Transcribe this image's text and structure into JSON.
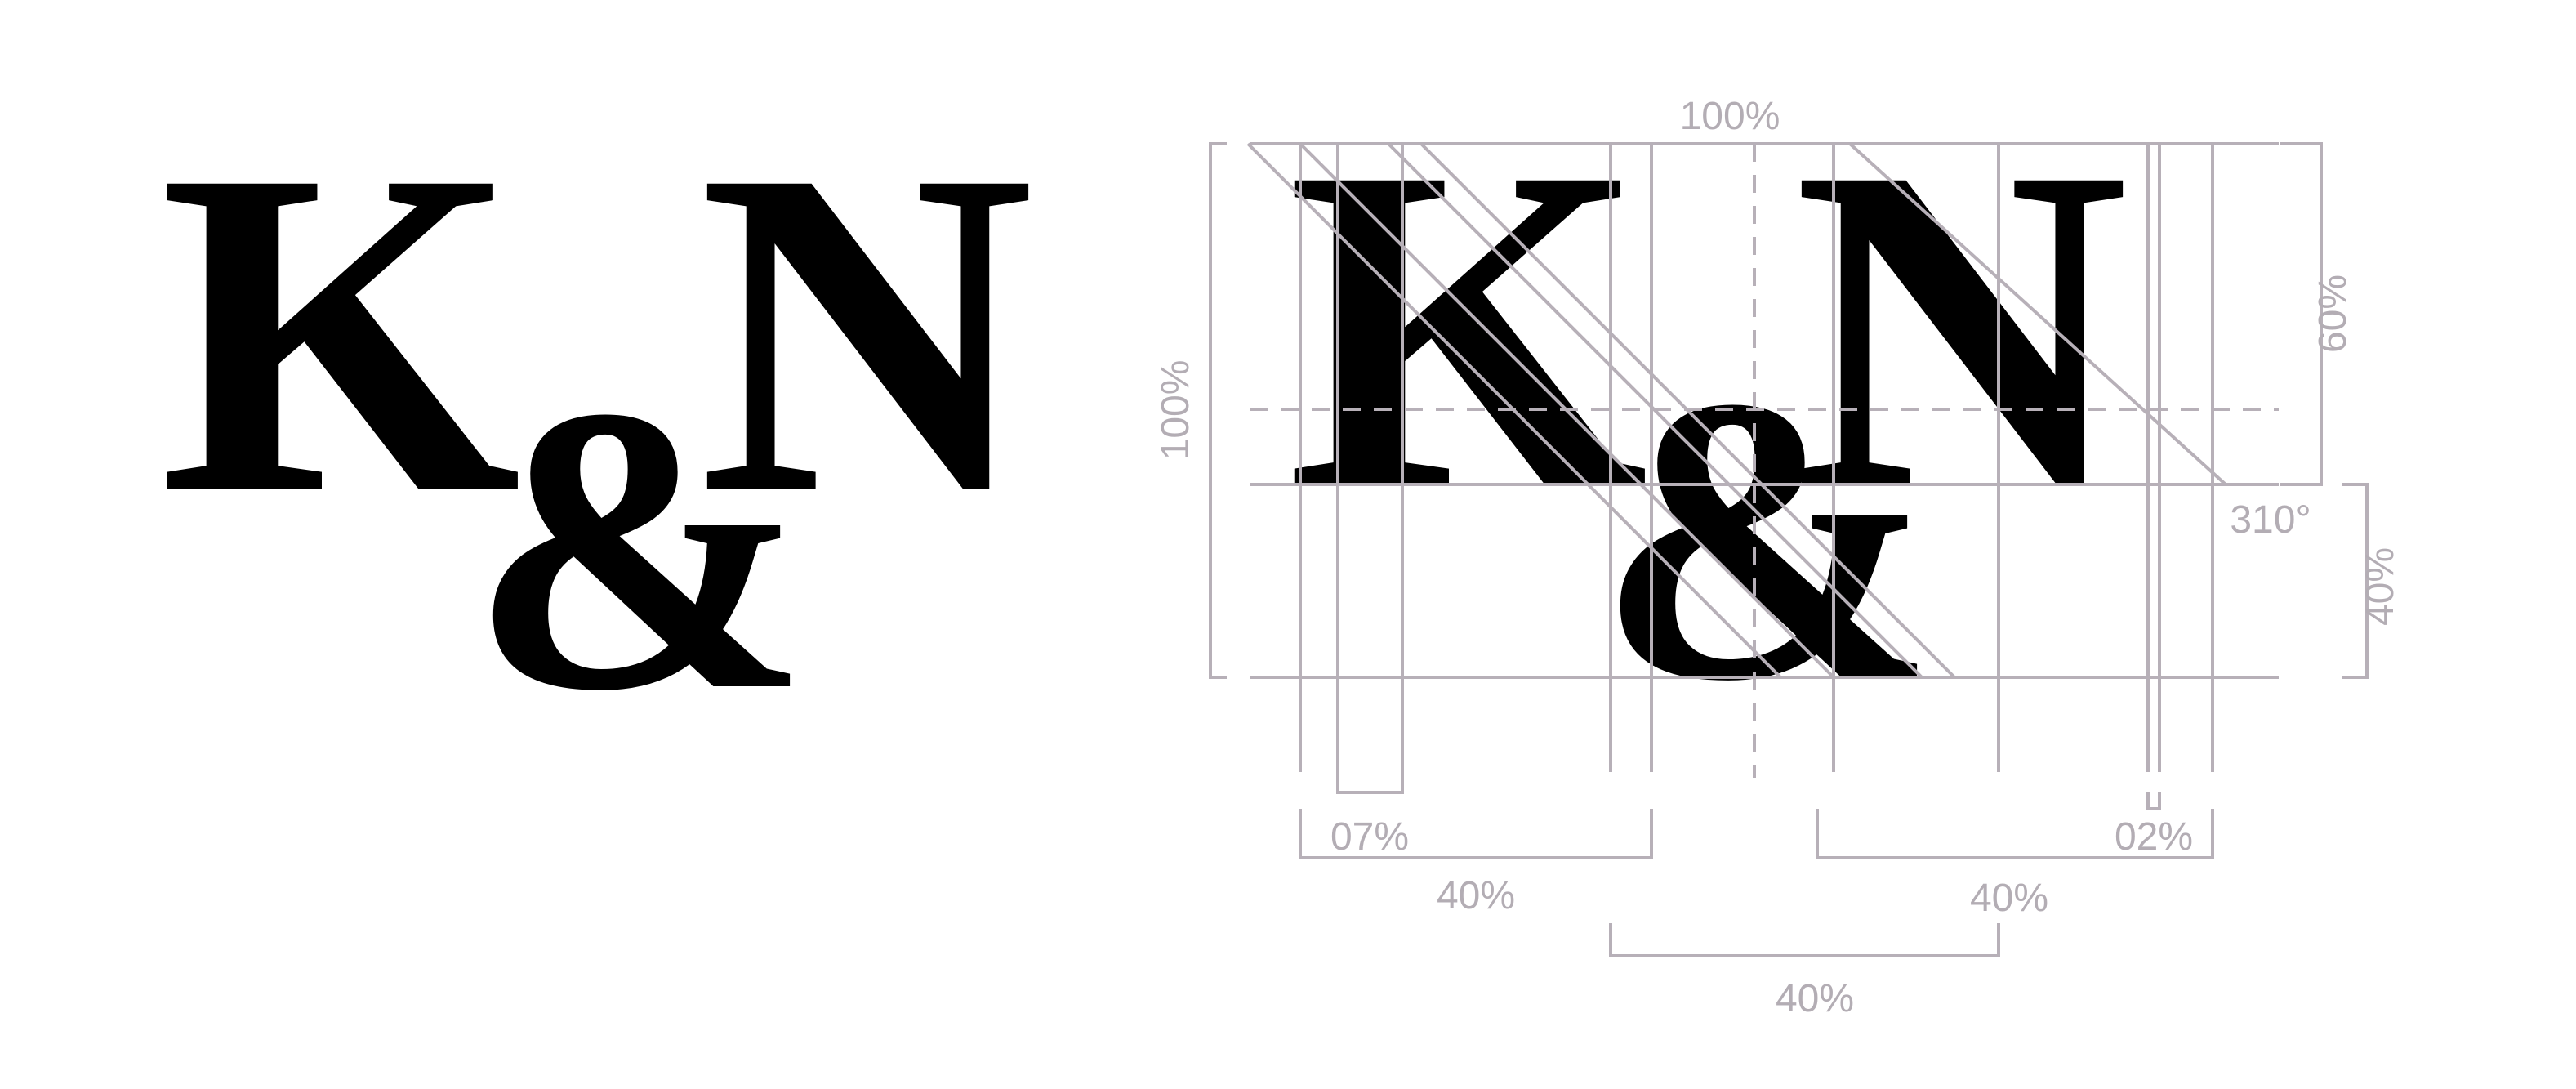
{
  "logo": {
    "letter_left": "K",
    "ampersand": "&",
    "letter_right": "N",
    "color": "#000000"
  },
  "construction": {
    "guide_color": "#b7b0b8",
    "label_color": "#b3adb4",
    "labels": {
      "top_width": "100%",
      "left_height": "100%",
      "right_upper_height": "60%",
      "right_lower_height": "40%",
      "angle": "310°",
      "k_stem": "07%",
      "k_width": "40%",
      "n_stem": "02%",
      "n_width": "40%",
      "amp_width": "40%"
    }
  }
}
